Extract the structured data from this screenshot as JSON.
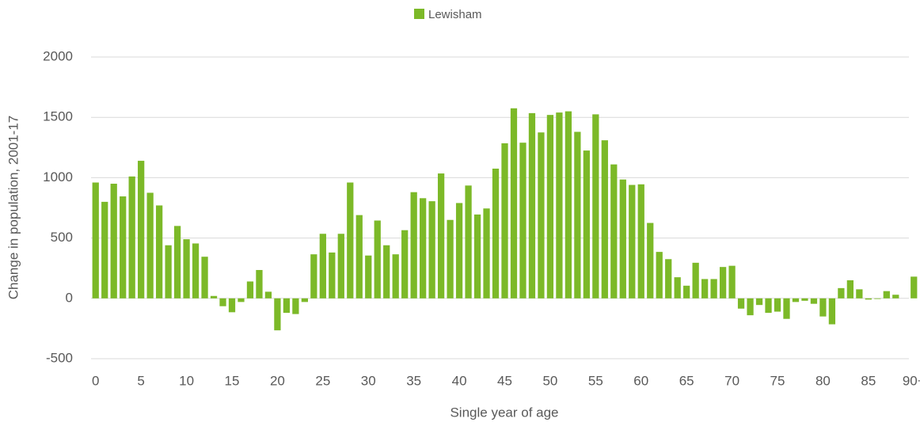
{
  "chart_data": {
    "type": "bar",
    "legend": "Lewisham",
    "xlabel": "Single year of age",
    "ylabel": "Change in population, 2001-17",
    "color": "#7cb928",
    "categories": [
      "0",
      null,
      null,
      null,
      null,
      "5",
      null,
      null,
      null,
      null,
      "10",
      null,
      null,
      null,
      null,
      "15",
      null,
      null,
      null,
      null,
      "20",
      null,
      null,
      null,
      null,
      "25",
      null,
      null,
      null,
      null,
      "30",
      null,
      null,
      null,
      null,
      "35",
      null,
      null,
      null,
      null,
      "40",
      null,
      null,
      null,
      null,
      "45",
      null,
      null,
      null,
      null,
      "50",
      null,
      null,
      null,
      null,
      "55",
      null,
      null,
      null,
      null,
      "60",
      null,
      null,
      null,
      null,
      "65",
      null,
      null,
      null,
      null,
      "70",
      null,
      null,
      null,
      null,
      "75",
      null,
      null,
      null,
      null,
      "80",
      null,
      null,
      null,
      null,
      "85",
      null,
      null,
      null,
      null,
      "90+"
    ],
    "values": [
      960,
      800,
      950,
      845,
      1010,
      1140,
      875,
      770,
      440,
      600,
      490,
      455,
      345,
      20,
      -65,
      -115,
      -30,
      140,
      235,
      55,
      -265,
      -120,
      -130,
      -30,
      365,
      535,
      380,
      535,
      960,
      690,
      355,
      645,
      440,
      365,
      565,
      880,
      830,
      805,
      1035,
      650,
      790,
      935,
      695,
      745,
      1075,
      1285,
      1575,
      1290,
      1535,
      1375,
      1520,
      1540,
      1550,
      1380,
      1225,
      1525,
      1310,
      1110,
      985,
      940,
      945,
      625,
      385,
      325,
      175,
      105,
      295,
      160,
      160,
      260,
      270,
      -85,
      -140,
      -55,
      -120,
      -110,
      -170,
      -30,
      -20,
      -45,
      -150,
      -215,
      85,
      150,
      75,
      -10,
      -5,
      60,
      30,
      0,
      180
    ],
    "ylim": [
      -500,
      2000
    ],
    "yticks": [
      -500,
      0,
      500,
      1000,
      1500,
      2000
    ],
    "grid": true
  }
}
